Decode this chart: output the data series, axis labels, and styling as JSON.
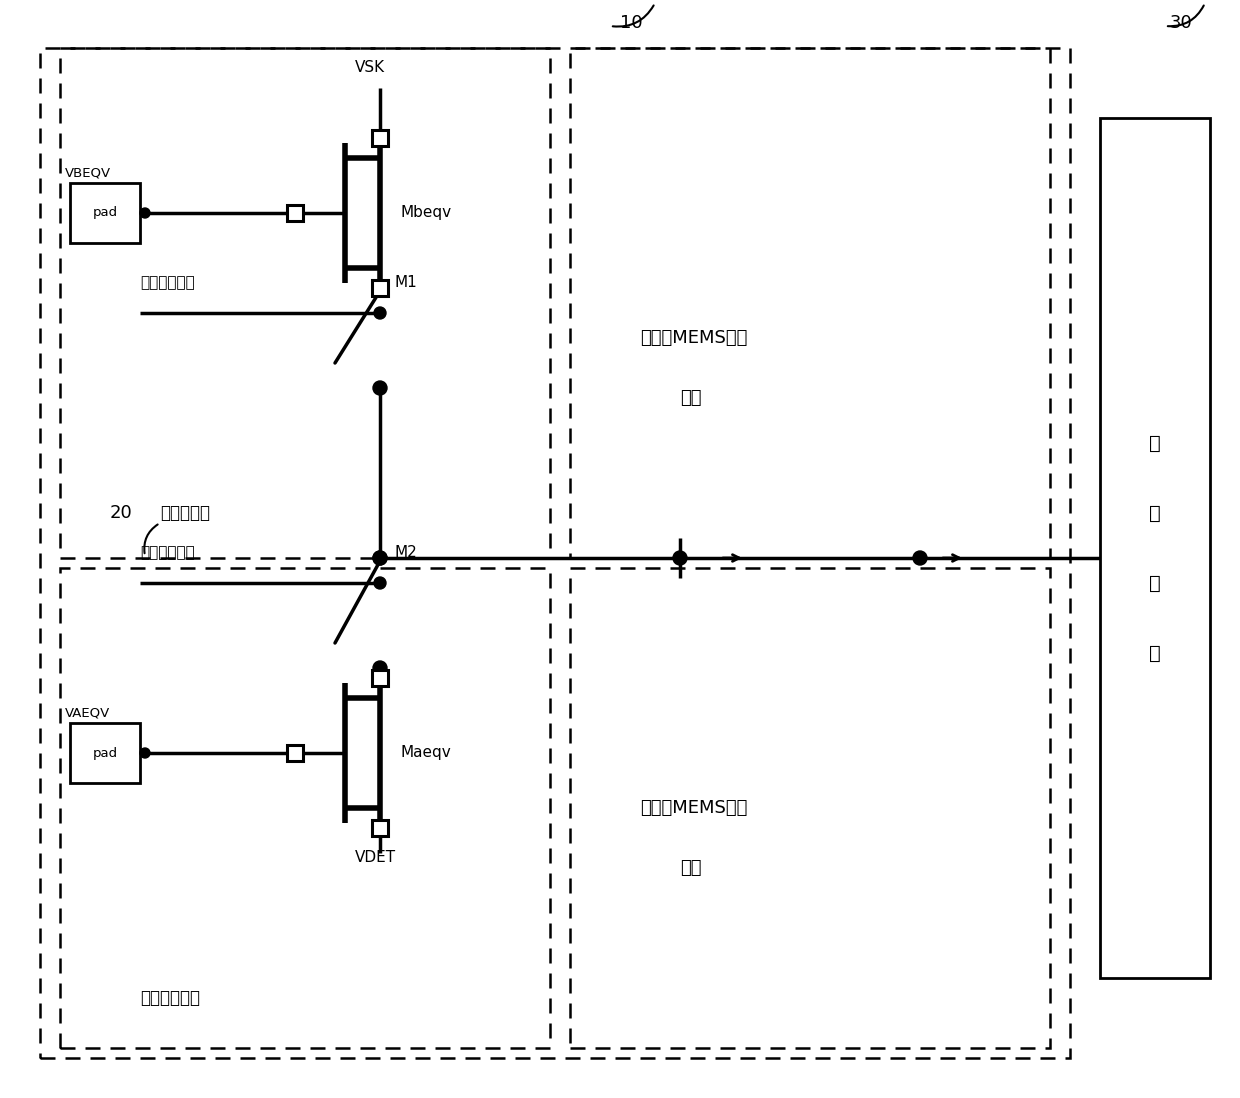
{
  "bg_color": "#ffffff",
  "lc": "#000000",
  "fig_w": 12.4,
  "fig_h": 10.98,
  "lbl_10": "10",
  "lbl_20": "20",
  "lbl_30": "30",
  "lbl_VSK": "VSK",
  "lbl_Mbeqv": "Mbeqv",
  "lbl_M1": "M1",
  "lbl_M2": "M2",
  "lbl_Maeqv": "Maeqv",
  "lbl_VDET": "VDET",
  "lbl_VBEQV": "VBEQV",
  "lbl_VAEQV": "VAEQV",
  "lbl_pad": "pad",
  "lbl_sel1": "第一选通信号",
  "lbl_sel2": "第二选通信号",
  "lbl_blind": "等效盲像元",
  "lbl_active": "等效有效像元",
  "lbl_mems_line1": "待形成MEMS像元",
  "lbl_mems_line2": "区域",
  "lbl_readout_1": "读",
  "lbl_readout_2": "出",
  "lbl_readout_3": "电",
  "lbl_readout_4": "路"
}
